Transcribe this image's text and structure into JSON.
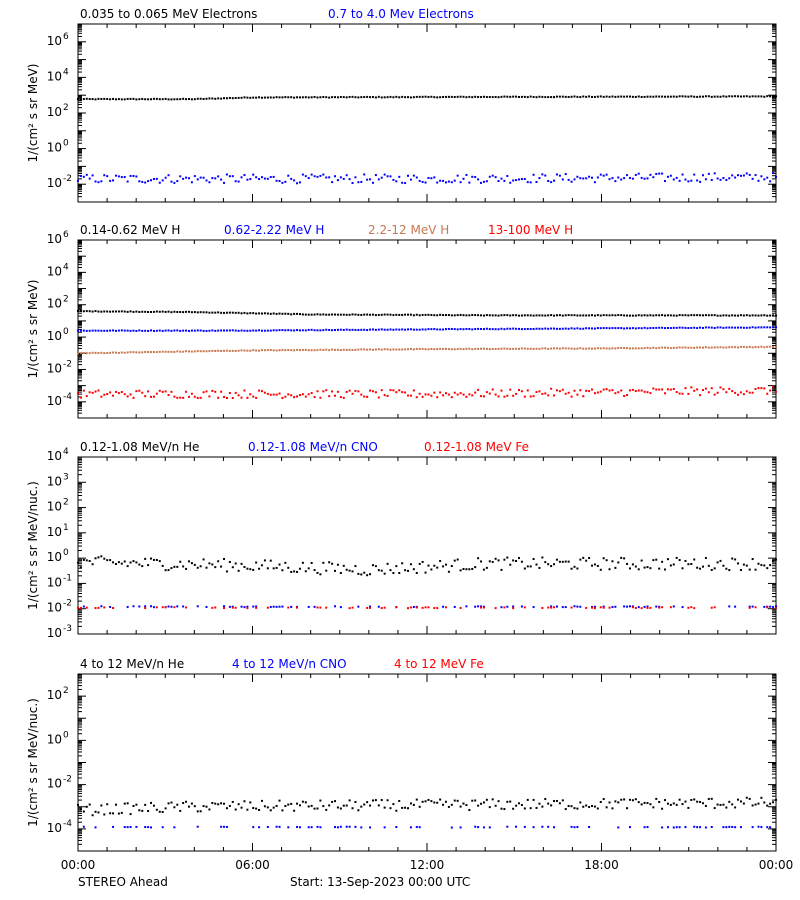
{
  "colors": {
    "black": "#000000",
    "blue": "#0000ff",
    "brown": "#c87850",
    "red": "#ff0000"
  },
  "footer": {
    "left": "STEREO Ahead",
    "center": "Start: 13-Sep-2023 00:00 UTC"
  },
  "chart_data": [
    {
      "type": "scatter",
      "scale": "log",
      "ylabel": "1/(cm² s sr MeV)",
      "ylim": [
        0.001,
        10000000
      ],
      "yticks": [
        {
          "exp": "-2",
          "value": 0.01
        },
        {
          "exp": "0",
          "value": 1
        },
        {
          "exp": "2",
          "value": 100
        },
        {
          "exp": "4",
          "value": 10000
        },
        {
          "exp": "6",
          "value": 1000000
        }
      ],
      "series": [
        {
          "name": "0.035 to 0.065 MeV Electrons",
          "color": "black",
          "values": [
            {
              "t": 0,
              "v": 600
            },
            {
              "t": 4,
              "v": 600
            },
            {
              "t": 6,
              "v": 750
            },
            {
              "t": 14,
              "v": 800
            },
            {
              "t": 24,
              "v": 850
            }
          ]
        },
        {
          "name": "0.7 to 4.0 Mev Electrons",
          "color": "blue",
          "values": [
            {
              "t": 0,
              "v": 0.02
            },
            {
              "t": 12,
              "v": 0.02
            },
            {
              "t": 24,
              "v": 0.025
            }
          ]
        }
      ]
    },
    {
      "type": "scatter",
      "scale": "log",
      "ylabel": "1/(cm² s sr MeV)",
      "ylim": [
        1e-05,
        1000000
      ],
      "yticks": [
        {
          "exp": "-4",
          "value": 0.0001
        },
        {
          "exp": "-2",
          "value": 0.01
        },
        {
          "exp": "0",
          "value": 1
        },
        {
          "exp": "2",
          "value": 100
        },
        {
          "exp": "4",
          "value": 10000
        },
        {
          "exp": "6",
          "value": 1000000
        }
      ],
      "series": [
        {
          "name": "0.14-0.62 MeV H",
          "color": "black",
          "values": [
            {
              "t": 0,
              "v": 40
            },
            {
              "t": 4,
              "v": 35
            },
            {
              "t": 8,
              "v": 25
            },
            {
              "t": 14,
              "v": 22
            },
            {
              "t": 24,
              "v": 22
            }
          ]
        },
        {
          "name": "0.62-2.22 MeV H",
          "color": "blue",
          "values": [
            {
              "t": 0,
              "v": 2.5
            },
            {
              "t": 5,
              "v": 2.5
            },
            {
              "t": 12,
              "v": 3
            },
            {
              "t": 24,
              "v": 4
            }
          ]
        },
        {
          "name": "2.2-12 MeV H",
          "color": "brown",
          "values": [
            {
              "t": 0,
              "v": 0.1
            },
            {
              "t": 6,
              "v": 0.15
            },
            {
              "t": 12,
              "v": 0.18
            },
            {
              "t": 18,
              "v": 0.2
            },
            {
              "t": 24,
              "v": 0.25
            }
          ]
        },
        {
          "name": "13-100 MeV H",
          "color": "red",
          "values": [
            {
              "t": 0,
              "v": 0.0003
            },
            {
              "t": 12,
              "v": 0.0003
            },
            {
              "t": 24,
              "v": 0.0005
            }
          ]
        }
      ]
    },
    {
      "type": "scatter",
      "scale": "log",
      "ylabel": "1/(cm² s sr MeV/nuc.)",
      "ylim": [
        0.001,
        10000
      ],
      "yticks": [
        {
          "exp": "-3",
          "value": 0.001
        },
        {
          "exp": "-2",
          "value": 0.01
        },
        {
          "exp": "-1",
          "value": 0.1
        },
        {
          "exp": "0",
          "value": 1
        },
        {
          "exp": "1",
          "value": 10
        },
        {
          "exp": "2",
          "value": 100
        },
        {
          "exp": "3",
          "value": 1000
        },
        {
          "exp": "4",
          "value": 10000
        }
      ],
      "series": [
        {
          "name": "0.12-1.08 MeV/n He",
          "color": "black",
          "values": [
            {
              "t": 0,
              "v": 0.7
            },
            {
              "t": 6,
              "v": 0.5
            },
            {
              "t": 10,
              "v": 0.35
            },
            {
              "t": 14,
              "v": 0.6
            },
            {
              "t": 24,
              "v": 0.6
            }
          ]
        },
        {
          "name": "0.12-1.08 MeV/n CNO",
          "color": "blue",
          "values": [
            {
              "t": 0,
              "v": 0.012
            },
            {
              "t": 24,
              "v": 0.012
            }
          ]
        },
        {
          "name": "0.12-1.08 MeV Fe",
          "color": "red",
          "values": [
            {
              "t": 0,
              "v": 0.011
            },
            {
              "t": 24,
              "v": 0.011
            }
          ]
        }
      ]
    },
    {
      "type": "scatter",
      "scale": "log",
      "ylabel": "1/(cm² s sr MeV/nuc.)",
      "ylim": [
        1e-05,
        1000
      ],
      "yticks": [
        {
          "exp": "-4",
          "value": 0.0001
        },
        {
          "exp": "-2",
          "value": 0.01
        },
        {
          "exp": "0",
          "value": 1
        },
        {
          "exp": "2",
          "value": 100
        }
      ],
      "series": [
        {
          "name": "4 to 12 MeV/n He",
          "color": "black",
          "values": [
            {
              "t": 0,
              "v": 0.0007
            },
            {
              "t": 4,
              "v": 0.001
            },
            {
              "t": 12,
              "v": 0.0012
            },
            {
              "t": 24,
              "v": 0.0015
            }
          ]
        },
        {
          "name": "4 to 12 MeV/n CNO",
          "color": "blue",
          "values": [
            {
              "t": 0,
              "v": 0.00012
            },
            {
              "t": 24,
              "v": 0.00012
            }
          ]
        },
        {
          "name": "4 to 12 MeV Fe",
          "color": "red",
          "values": []
        }
      ]
    }
  ],
  "xaxis": {
    "range": [
      0,
      24
    ],
    "ticks": [
      {
        "label": "00:00",
        "t": 0
      },
      {
        "label": "06:00",
        "t": 6
      },
      {
        "label": "12:00",
        "t": 12
      },
      {
        "label": "18:00",
        "t": 18
      },
      {
        "label": "00:00",
        "t": 24
      }
    ]
  }
}
